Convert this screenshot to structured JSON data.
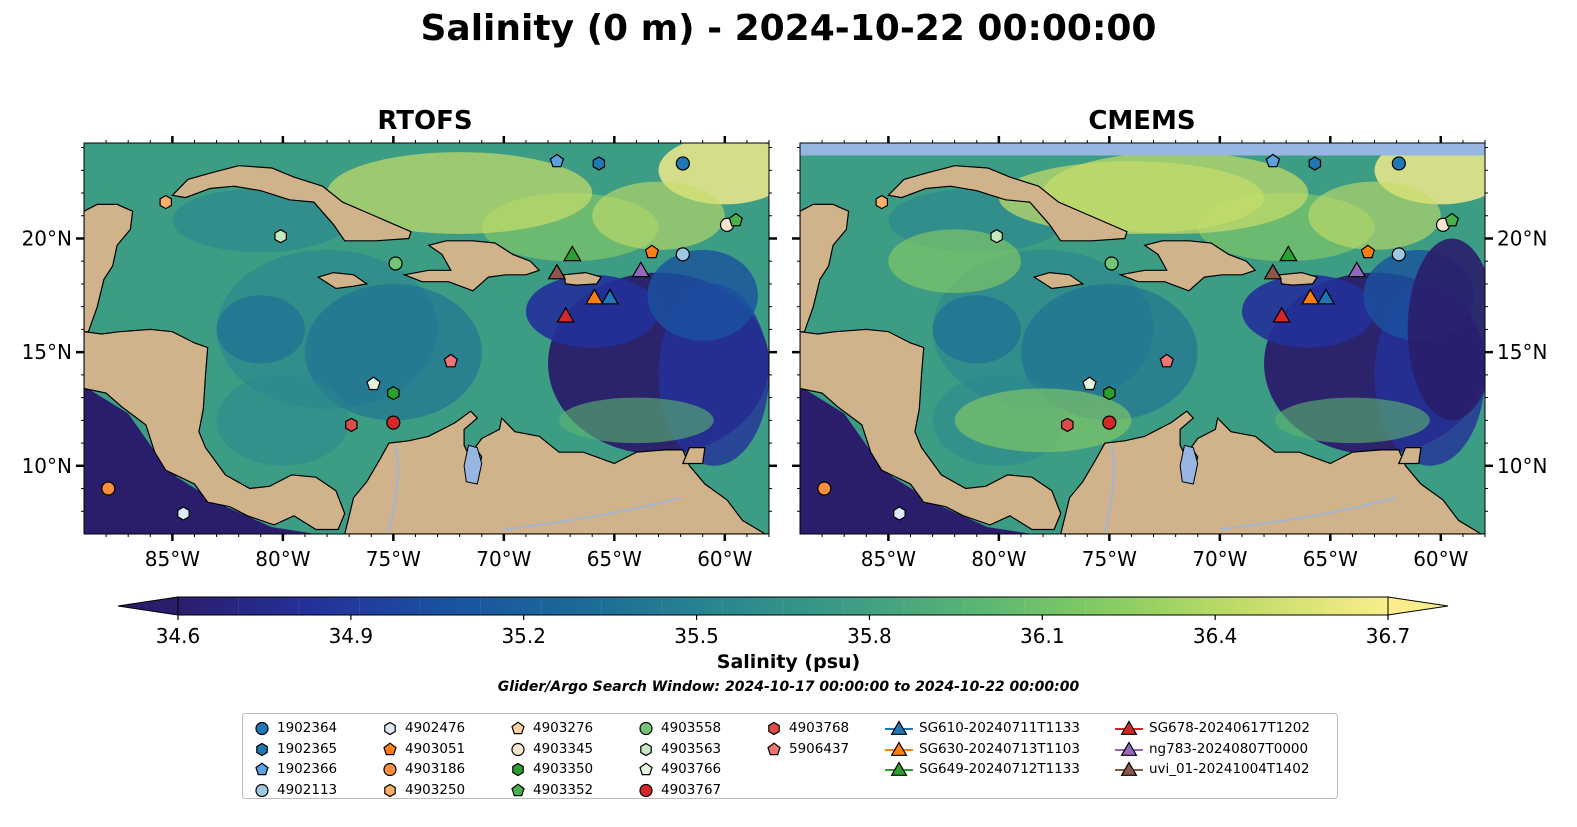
{
  "title": "Salinity (0 m) - 2024-10-22 00:00:00",
  "panels": [
    {
      "title": "RTOFS"
    },
    {
      "title": "CMEMS"
    }
  ],
  "colorbar": {
    "label": "Salinity (psu)",
    "ticks": [
      "34.6",
      "34.9",
      "35.2",
      "35.5",
      "35.8",
      "36.1",
      "36.4",
      "36.7"
    ],
    "range": [
      34.6,
      36.7
    ],
    "colormap_stops": [
      "#2a1e6c",
      "#24319a",
      "#1a52a0",
      "#1b6a97",
      "#2a8590",
      "#3d9c84",
      "#5bb872",
      "#8ccd62",
      "#c6dd69",
      "#faee8c"
    ]
  },
  "search_window": "Glider/Argo Search Window: 2024-10-17 00:00:00 to 2024-10-22 00:00:00",
  "map": {
    "lon_range": [
      -89,
      -58
    ],
    "lat_range": [
      7,
      24.2
    ],
    "lon_ticks": [
      "85°W",
      "80°W",
      "75°W",
      "70°W",
      "65°W",
      "60°W"
    ],
    "lat_ticks": [
      "20°N",
      "15°N",
      "10°N"
    ],
    "land_color": "#d1b38b",
    "lake_color": "#97b6e1"
  },
  "chart_data": {
    "type": "scatter",
    "series": [
      {
        "name": "1902364",
        "marker": "circle",
        "color": "#1f77b4",
        "lon": -61.9,
        "lat": 23.3
      },
      {
        "name": "1902365",
        "marker": "hexagon",
        "color": "#1f77b4",
        "lon": -65.7,
        "lat": 23.3
      },
      {
        "name": "1902366",
        "marker": "pentagon",
        "color": "#5ba3e0",
        "lon": -67.6,
        "lat": 23.4
      },
      {
        "name": "4902113",
        "marker": "circle",
        "color": "#9ecae1",
        "lon": -61.9,
        "lat": 19.3
      },
      {
        "name": "4902476",
        "marker": "hexagon",
        "color": "#deebf7",
        "lon": -84.5,
        "lat": 7.9
      },
      {
        "name": "4903051",
        "marker": "pentagon",
        "color": "#fd7e14",
        "lon": -63.3,
        "lat": 19.4
      },
      {
        "name": "4903186",
        "marker": "circle",
        "color": "#fd8d3c",
        "lon": -87.9,
        "lat": 9.0
      },
      {
        "name": "4903250",
        "marker": "hexagon",
        "color": "#fdae6b",
        "lon": -85.3,
        "lat": 21.6
      },
      {
        "name": "4903276",
        "marker": "pentagon",
        "color": "#fdd0a2",
        "lon": null,
        "lat": null
      },
      {
        "name": "4903345",
        "marker": "circle",
        "color": "#fee6ce",
        "lon": -59.9,
        "lat": 20.6
      },
      {
        "name": "4903350",
        "marker": "hexagon",
        "color": "#2ca02c",
        "lon": -75.0,
        "lat": 13.2
      },
      {
        "name": "4903352",
        "marker": "pentagon",
        "color": "#4ab04a",
        "lon": -59.5,
        "lat": 20.8
      },
      {
        "name": "4903558",
        "marker": "circle",
        "color": "#74c476",
        "lon": -74.9,
        "lat": 18.9
      },
      {
        "name": "4903563",
        "marker": "hexagon",
        "color": "#c7e9c0",
        "lon": -80.1,
        "lat": 20.1
      },
      {
        "name": "4903766",
        "marker": "pentagon",
        "color": "#e5f5e0",
        "lon": -75.9,
        "lat": 13.6
      },
      {
        "name": "4903767",
        "marker": "circle",
        "color": "#d62728",
        "lon": -75.0,
        "lat": 11.9
      },
      {
        "name": "4903768",
        "marker": "hexagon",
        "color": "#de4b4b",
        "lon": -76.9,
        "lat": 11.8
      },
      {
        "name": "5906437",
        "marker": "pentagon",
        "color": "#f07676",
        "lon": -72.4,
        "lat": 14.6
      },
      {
        "name": "SG610-20240711T1133",
        "marker": "triangle",
        "color": "#1f77b4",
        "lon": -65.2,
        "lat": 17.4
      },
      {
        "name": "SG630-20240713T1103",
        "marker": "triangle",
        "color": "#ff7f0e",
        "lon": -65.9,
        "lat": 17.4
      },
      {
        "name": "SG649-20240712T1133",
        "marker": "triangle",
        "color": "#2ca02c",
        "lon": -66.9,
        "lat": 19.3
      },
      {
        "name": "SG678-20240617T1202",
        "marker": "triangle",
        "color": "#d62728",
        "lon": -67.2,
        "lat": 16.6
      },
      {
        "name": "ng783-20240807T0000",
        "marker": "triangle",
        "color": "#9467bd",
        "lon": -63.8,
        "lat": 18.6
      },
      {
        "name": "uvi_01-20241004T1402",
        "marker": "triangle",
        "color": "#8c564b",
        "lon": -67.6,
        "lat": 18.5
      }
    ]
  }
}
